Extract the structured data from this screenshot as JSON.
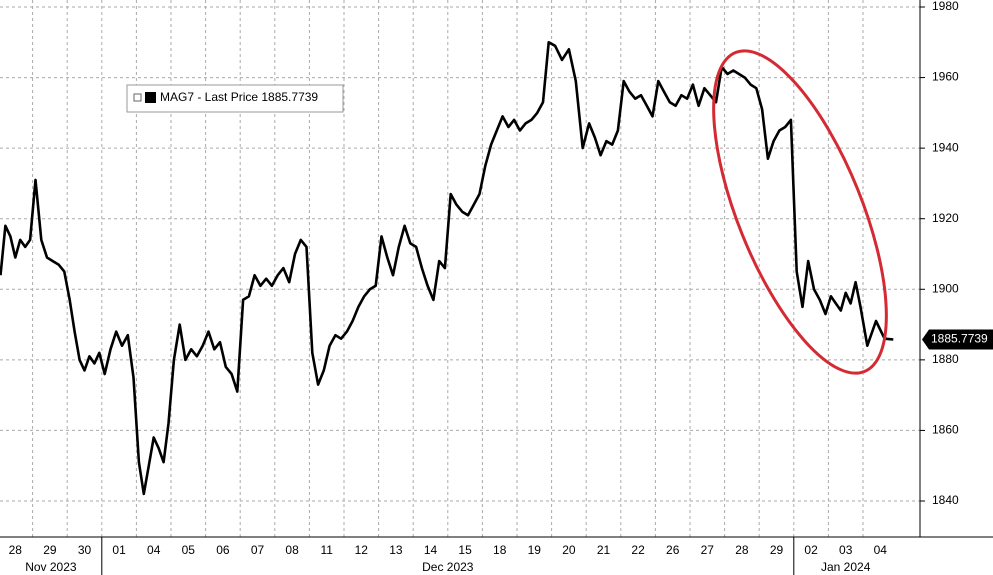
{
  "chart_data": {
    "type": "line",
    "legend_text": "MAG7 - Last Price 1885.7739",
    "month_groups": [
      {
        "label": "Nov 2023",
        "days": [
          "28",
          "29",
          "30"
        ]
      },
      {
        "label": "Dec 2023",
        "days": [
          "01",
          "04",
          "05",
          "06",
          "07",
          "08",
          "11",
          "12",
          "13",
          "14",
          "15",
          "18",
          "19",
          "20",
          "21",
          "22",
          "26",
          "27",
          "28",
          "29"
        ]
      },
      {
        "label": "Jan 2024",
        "days": [
          "02",
          "03",
          "04"
        ]
      }
    ],
    "series": [
      {
        "name": "MAG7",
        "color": "#000000",
        "values": [
          [
            1904,
            1918,
            1915,
            1909,
            1914,
            1912,
            1914
          ],
          [
            1931,
            1914,
            1909,
            1908,
            1907,
            1905
          ],
          [
            1897,
            1888,
            1880,
            1877,
            1881,
            1879,
            1882
          ],
          [
            1876,
            1883,
            1888,
            1884,
            1887,
            1875
          ],
          [
            1851,
            1842,
            1850,
            1858,
            1855,
            1851,
            1862
          ],
          [
            1880,
            1890,
            1880,
            1883,
            1881,
            1884
          ],
          [
            1888,
            1883,
            1885,
            1878,
            1876,
            1871
          ],
          [
            1897,
            1898,
            1904,
            1901,
            1903,
            1901
          ],
          [
            1904,
            1906,
            1902,
            1910,
            1914,
            1912
          ],
          [
            1882,
            1873,
            1877,
            1884,
            1887,
            1886
          ],
          [
            1888,
            1891,
            1895,
            1898,
            1900,
            1901
          ],
          [
            1915,
            1909,
            1904,
            1912,
            1918,
            1913
          ],
          [
            1912,
            1906,
            1901,
            1897,
            1908,
            1906
          ],
          [
            1927,
            1924,
            1922,
            1921,
            1924,
            1927
          ],
          [
            1935,
            1941,
            1945,
            1949,
            1946,
            1948
          ],
          [
            1945,
            1947,
            1948,
            1950,
            1953,
            1970
          ],
          [
            1969,
            1965,
            1968,
            1959,
            1940
          ],
          [
            1947,
            1943,
            1938,
            1942,
            1941,
            1945
          ],
          [
            1959,
            1956,
            1954,
            1955,
            1952,
            1949
          ],
          [
            1959,
            1956,
            1953,
            1952,
            1955,
            1954
          ],
          [
            1958,
            1952,
            1957,
            1955,
            1953,
            1963
          ],
          [
            1961,
            1962,
            1961,
            1960,
            1958,
            1957
          ],
          [
            1951,
            1937,
            1942,
            1945,
            1946,
            1948
          ],
          [
            1905,
            1895,
            1908,
            1900,
            1897,
            1893
          ],
          [
            1898,
            1896,
            1894,
            1899,
            1896,
            1902,
            1895
          ],
          [
            1884,
            1891,
            1886,
            1885.7739
          ]
        ]
      }
    ],
    "ylim": [
      1840,
      1980
    ],
    "yticks": [
      1840,
      1860,
      1880,
      1900,
      1920,
      1940,
      1960,
      1980
    ],
    "grid": true
  }
}
